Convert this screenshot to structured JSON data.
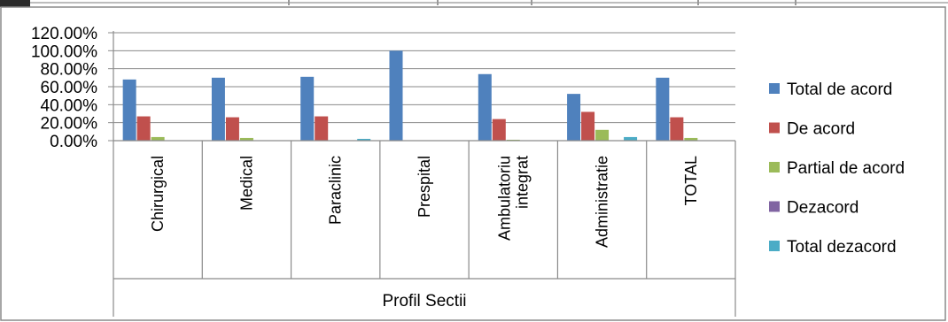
{
  "chart_data": {
    "type": "bar",
    "title": "",
    "xlabel": "Profil Sectii",
    "ylabel": "",
    "ylim": [
      0,
      1.2
    ],
    "yticks": [
      "0.00%",
      "20.00%",
      "40.00%",
      "60.00%",
      "80.00%",
      "100.00%",
      "120.00%"
    ],
    "grid": true,
    "legend_position": "right",
    "categories": [
      [
        "Chirurgical"
      ],
      [
        "Medical"
      ],
      [
        "Paraclinic"
      ],
      [
        "Prespital"
      ],
      [
        "Ambulatoriu",
        "integrat"
      ],
      [
        "Administratie"
      ],
      [
        "TOTAL"
      ]
    ],
    "series": [
      {
        "name": "Total de acord",
        "color": "#4F81BD",
        "values": [
          0.68,
          0.7,
          0.71,
          1.0,
          0.74,
          0.52,
          0.7
        ]
      },
      {
        "name": "De acord",
        "color": "#C0504D",
        "values": [
          0.27,
          0.26,
          0.27,
          0.0,
          0.24,
          0.32,
          0.26
        ]
      },
      {
        "name": "Partial de acord",
        "color": "#9BBB59",
        "values": [
          0.04,
          0.03,
          0.0,
          0.0,
          0.01,
          0.12,
          0.03
        ]
      },
      {
        "name": "Dezacord",
        "color": "#8064A2",
        "values": [
          0.0,
          0.0,
          0.0,
          0.0,
          0.0,
          0.0,
          0.0
        ]
      },
      {
        "name": "Total dezacord",
        "color": "#4BACC6",
        "values": [
          0.0,
          0.0,
          0.02,
          0.0,
          0.0,
          0.04,
          0.0
        ]
      }
    ]
  }
}
